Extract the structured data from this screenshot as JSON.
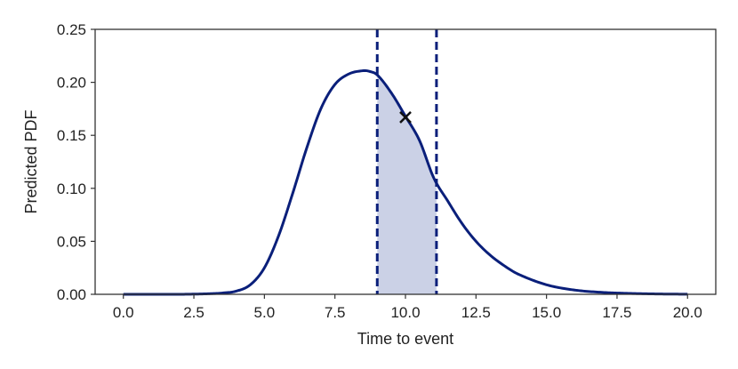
{
  "chart_data": {
    "type": "line",
    "title": "",
    "xlabel": "Time to event",
    "ylabel": "Predicted PDF",
    "xlim": [
      -1.0,
      21.0
    ],
    "ylim": [
      0.0,
      0.25
    ],
    "xticks": [
      0.0,
      2.5,
      5.0,
      7.5,
      10.0,
      12.5,
      15.0,
      17.5,
      20.0
    ],
    "xtick_labels": [
      "0.0",
      "2.5",
      "5.0",
      "7.5",
      "10.0",
      "12.5",
      "15.0",
      "17.5",
      "20.0"
    ],
    "yticks": [
      0.0,
      0.05,
      0.1,
      0.15,
      0.2,
      0.25
    ],
    "ytick_labels": [
      "0.00",
      "0.05",
      "0.10",
      "0.15",
      "0.20",
      "0.25"
    ],
    "grid": false,
    "legend": "none",
    "series": [
      {
        "x": [
          0,
          1,
          2,
          3,
          3.5,
          4,
          4.5,
          5,
          5.5,
          6,
          6.5,
          7,
          7.5,
          8,
          8.5,
          8.7,
          9,
          9.5,
          10,
          10.5,
          11,
          11.5,
          12,
          12.5,
          13,
          13.5,
          14,
          15,
          16,
          17,
          18,
          19,
          20
        ],
        "y": [
          0.0,
          0.0,
          0.0,
          0.0005,
          0.0012,
          0.003,
          0.009,
          0.025,
          0.055,
          0.095,
          0.138,
          0.175,
          0.198,
          0.208,
          0.211,
          0.2105,
          0.207,
          0.19,
          0.168,
          0.145,
          0.11,
          0.088,
          0.067,
          0.05,
          0.037,
          0.027,
          0.019,
          0.009,
          0.004,
          0.0018,
          0.0008,
          0.0003,
          0.0001
        ],
        "color": "#0a1f7a"
      }
    ],
    "interval": {
      "lower": 9.0,
      "upper": 11.1,
      "fill_color": "#cbd1e6",
      "line_color": "#0a1f7a"
    },
    "marker": {
      "x": 10.0,
      "y": 0.167,
      "symbol": "x",
      "color": "#111111"
    }
  }
}
